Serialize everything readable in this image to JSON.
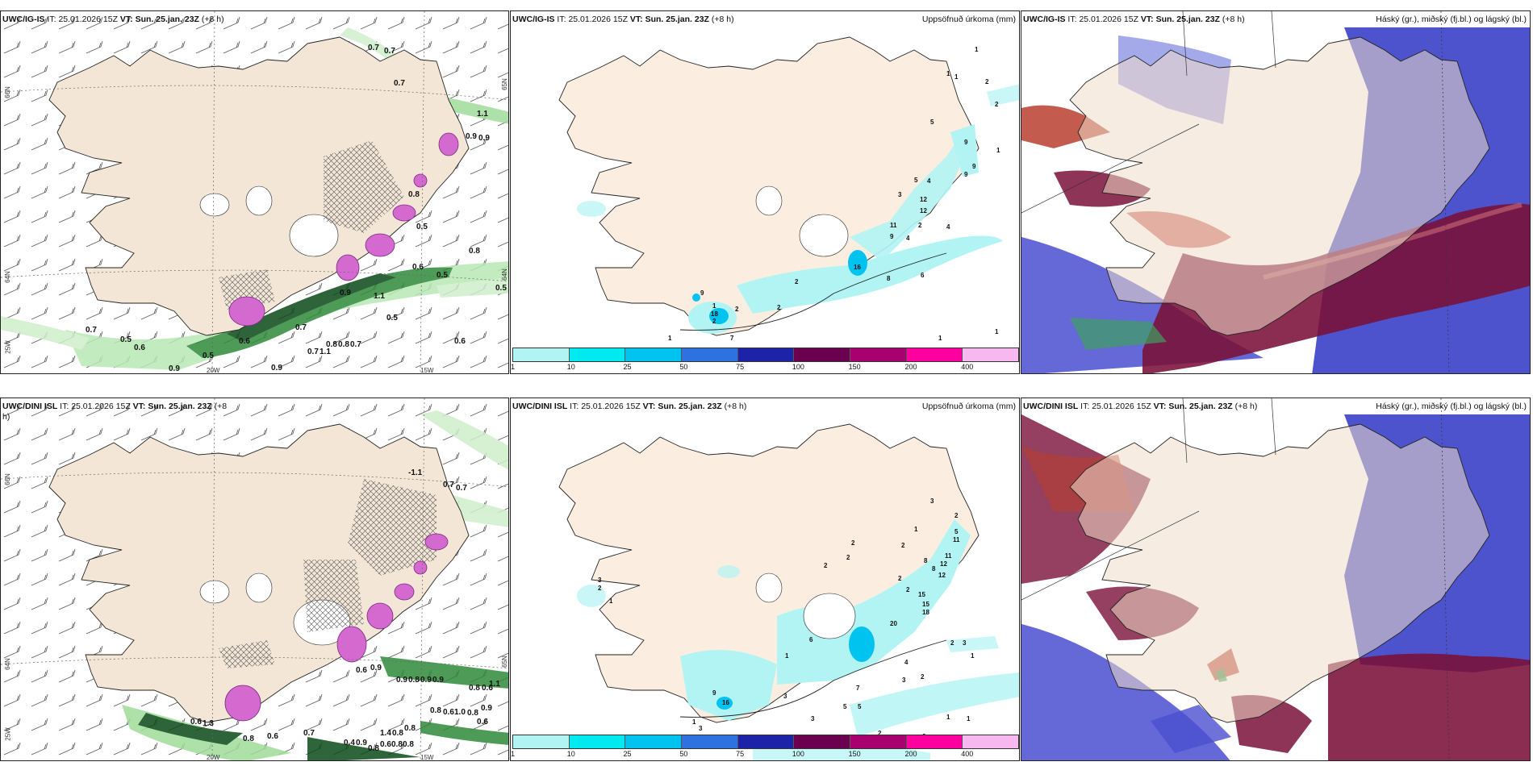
{
  "panels": {
    "wind_ig": {
      "model": "UWC/IG-IS",
      "it_label": "IT:",
      "it": "25.01.2026 15Z",
      "vt_label": "VT:",
      "vt": "Sun. 25.jan. 23Z",
      "lead": "(+8 h)",
      "lon_labels": [
        "20W",
        "15W"
      ],
      "lat_labels": [
        "66N",
        "64N",
        "25W",
        "65N",
        "64N"
      ]
    },
    "precip_ig": {
      "model": "UWC/IG-IS",
      "it_label": "IT:",
      "it": "25.01.2026 15Z",
      "vt_label": "VT:",
      "vt": "Sun. 25.jan. 23Z",
      "lead": "(+8 h)",
      "right_title": "Uppsöfnuð úrkoma (mm)"
    },
    "cloud_ig": {
      "model": "UWC/IG-IS",
      "it_label": "IT:",
      "it": "25.01.2026 15Z",
      "vt_label": "VT:",
      "vt": "Sun. 25.jan. 23Z",
      "lead": "(+8 h)",
      "right_title": "Háský (gr.), miðský (fj.bl.) og lágský (bl.)"
    },
    "wind_dini": {
      "model": "UWC/DINI ISL",
      "it_label": "IT:",
      "it": "25.01.2026 15Z",
      "vt_label": "VT:",
      "vt": "Sun. 25.jan. 23Z",
      "lead": "(+8",
      "lead2": "h)",
      "lon_labels": [
        "20W",
        "15W"
      ],
      "lat_labels": [
        "66N",
        "64N",
        "25W",
        "65N"
      ]
    },
    "precip_dini": {
      "model": "UWC/DINI ISL",
      "it_label": "IT:",
      "it": "25.01.2026 15Z",
      "vt_label": "VT:",
      "vt": "Sun. 25.jan. 23Z",
      "lead": "(+8 h)",
      "right_title": "Uppsöfnuð úrkoma (mm)"
    },
    "cloud_dini": {
      "model": "UWC/DINI ISL",
      "it_label": "IT:",
      "it": "25.01.2026 15Z",
      "vt_label": "VT:",
      "vt": "Sun. 25.jan. 23Z",
      "lead": "(+8 h)",
      "right_title": "Háský (gr.), miðský (fj.bl.) og lágský (bl.)"
    }
  },
  "colorbar": {
    "colors": [
      "#b2f4f4",
      "#00e8f0",
      "#00c3f0",
      "#2d72e0",
      "#1c23a8",
      "#6b0050",
      "#a8006e",
      "#ff00a0",
      "#f7b8f0"
    ],
    "ticks": [
      "1",
      "10",
      "25",
      "50",
      "75",
      "100",
      "150",
      "200",
      "400"
    ]
  },
  "wind_ig_labels": [
    "0.7",
    "0.7",
    "0.7",
    "0.9",
    "0.9",
    "0.5",
    "0.5",
    "0.6",
    "0.6",
    "0.8",
    "0.8",
    "0.7",
    "0.7",
    "0.5",
    "0.9",
    "0.9",
    "0.7",
    "1.1",
    "1.1",
    "0.9",
    "0.6",
    "0.5",
    "0.8",
    "1.1",
    "0.8",
    "0.5",
    "0.6",
    "0.7",
    "0.5"
  ],
  "wind_dini_labels": [
    "-1.1",
    "0.7",
    "0.7",
    "0.6",
    "0.9",
    "0.9",
    "0.8",
    "0.9",
    "0.9",
    "0.8",
    "0.6",
    "0.8",
    "0.6",
    "1.0",
    "0.8",
    "0.6",
    "0.6",
    "1.3",
    "0.9",
    "1.4",
    "0.8",
    "0.8",
    "0.6",
    "0.8",
    "0.8",
    "0.4",
    "0.9",
    "0.8",
    "0.6",
    "0.8",
    "1.1",
    "0.7"
  ],
  "precip_ig_labels": [
    "1",
    "1",
    "1",
    "2",
    "2",
    "5",
    "9",
    "9",
    "9",
    "1",
    "4",
    "5",
    "3",
    "12",
    "12",
    "11",
    "9",
    "4",
    "2",
    "4",
    "16",
    "8",
    "6",
    "2",
    "2",
    "9",
    "18",
    "2",
    "7",
    "1",
    "2",
    "1",
    "1",
    "1"
  ],
  "precip_dini_labels": [
    "3",
    "2",
    "5",
    "11",
    "1",
    "2",
    "11",
    "12",
    "2",
    "8",
    "8",
    "12",
    "2",
    "2",
    "15",
    "15",
    "18",
    "20",
    "2",
    "3",
    "3",
    "2",
    "1",
    "6",
    "1",
    "2",
    "2",
    "1",
    "4",
    "2",
    "3",
    "7",
    "3",
    "5",
    "5",
    "1",
    "1",
    "1",
    "3",
    "2",
    "3",
    "2",
    "3",
    "9",
    "16"
  ]
}
